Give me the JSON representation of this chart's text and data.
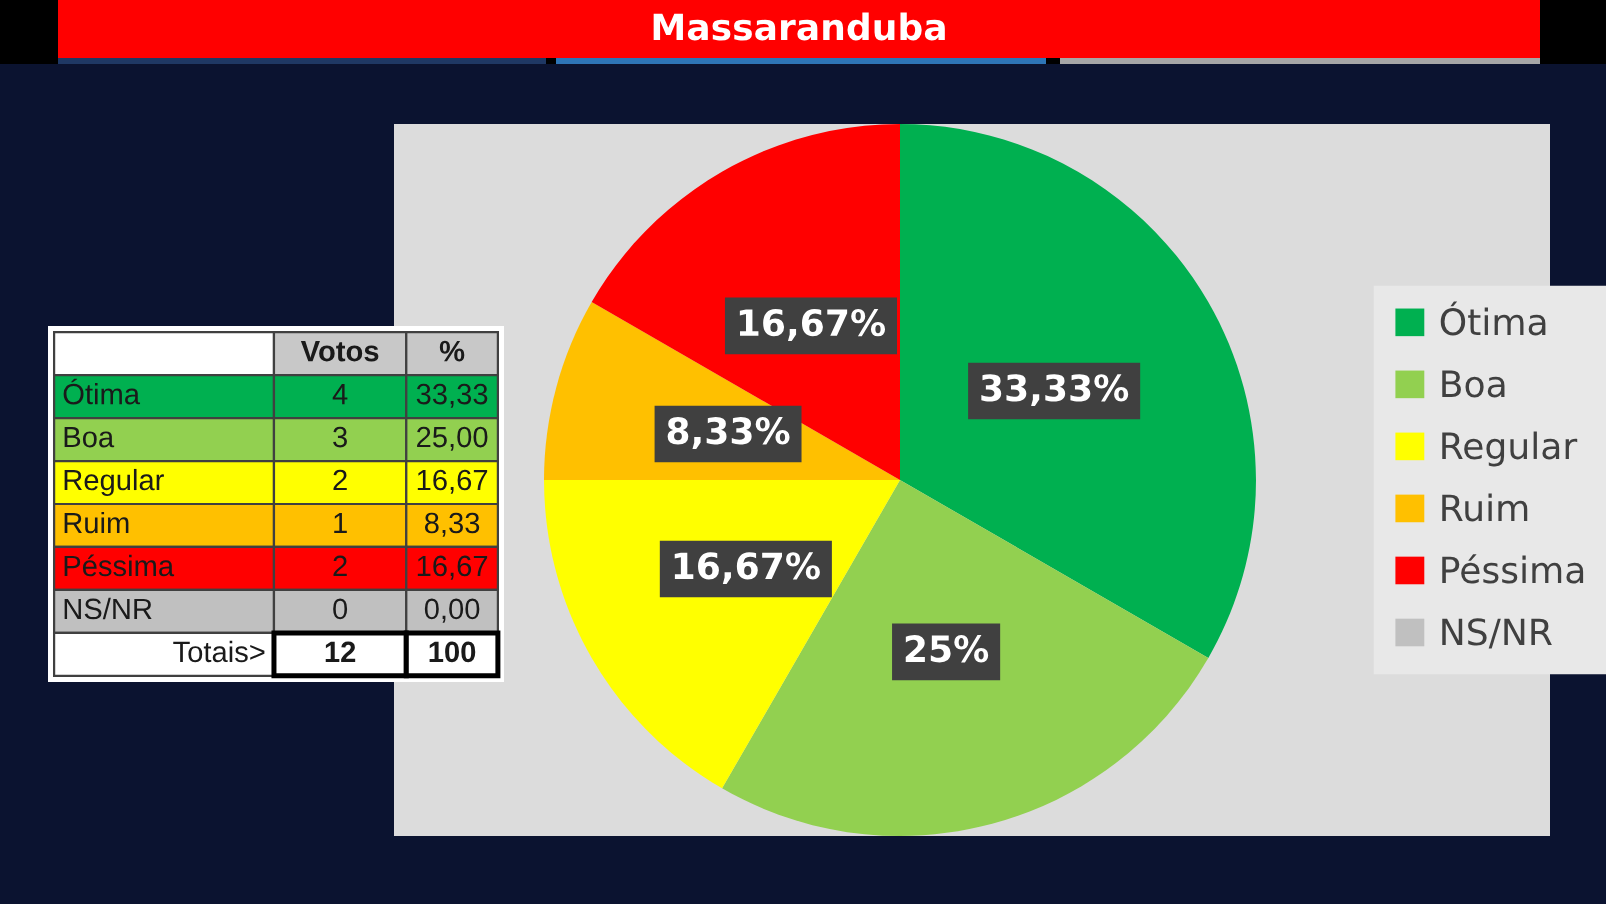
{
  "chart_data": [
    {
      "type": "other",
      "categories": [
        "Ótima",
        "Boa",
        "Regular",
        "Ruim",
        "Péssima",
        "NS/NR"
      ],
      "colors": [
        "#00b050",
        "#92d050",
        "#ffff00",
        "#ffc000",
        "#ff0000",
        "#c0c0c0"
      ],
      "series": [
        {
          "name": "Votos",
          "values": [
            4,
            3,
            2,
            1,
            2,
            0
          ],
          "colors": [
            "#00b050",
            "#92d050",
            "#ffff00",
            "#ffc000",
            "#ff0000",
            "#c0c0c0"
          ],
          "value_labels": [
            "4",
            "3",
            "2",
            "1",
            "2",
            "0"
          ]
        },
        {
          "name": "%",
          "values": [
            33.33,
            25.0,
            16.67,
            8.33,
            16.67,
            0.0
          ],
          "colors": [
            "#00b050",
            "#92d050",
            "#ffff00",
            "#ffc000",
            "#ff0000",
            "#c0c0c0"
          ],
          "value_labels": [
            "33,33",
            "25,00",
            "16,67",
            "8,33",
            "16,67",
            "0,00"
          ]
        }
      ],
      "totals": [
        "12",
        "100"
      ],
      "annotations": [
        "Totais>"
      ]
    },
    {
      "type": "pie",
      "title": "Massaranduba",
      "categories": [
        "Ótima",
        "Boa",
        "Regular",
        "Ruim",
        "Péssima",
        "NS/NR"
      ],
      "values": [
        33.33,
        25,
        16.67,
        8.33,
        16.67,
        0
      ],
      "colors": [
        "#00b050",
        "#92d050",
        "#ffff00",
        "#ffc000",
        "#ff0000",
        "#c0c0c0"
      ],
      "value_labels": [
        "33,33%",
        "25%",
        "16,67%",
        "8,33%",
        "16,67%",
        null
      ],
      "legend": "right"
    }
  ]
}
